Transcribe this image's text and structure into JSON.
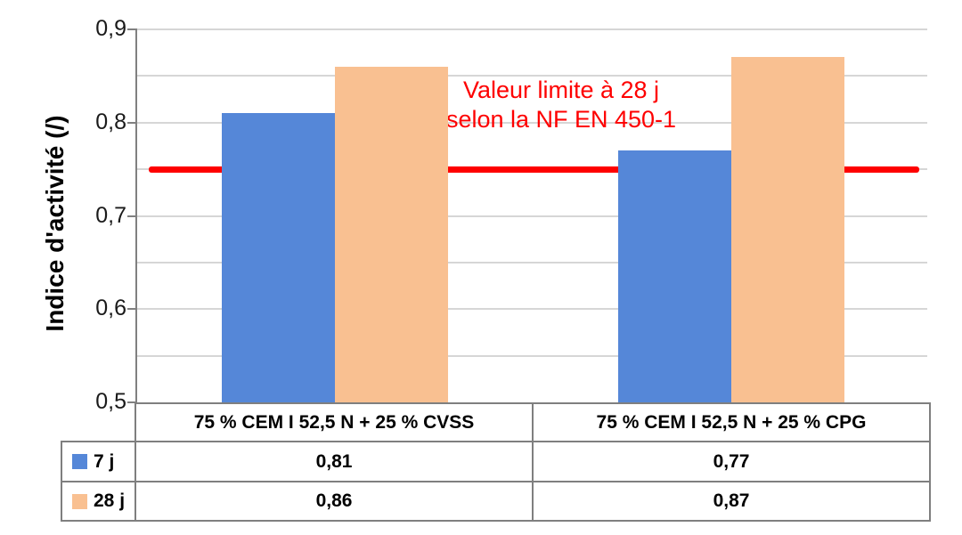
{
  "chart_data": {
    "type": "bar",
    "title": "",
    "ylabel": "Indice d'activité (/)",
    "xlabel": "",
    "ylim": [
      0.5,
      0.9
    ],
    "ytick_step": 0.1,
    "grid_step": 0.05,
    "ytick_labels": [
      "0,5",
      "0,6",
      "0,7",
      "0,8",
      "0,9"
    ],
    "grid": true,
    "legend_position": "table-left",
    "categories": [
      "75 % CEM I 52,5 N + 25 % CVSS",
      "75 % CEM I 52,5 N + 25 % CPG"
    ],
    "series": [
      {
        "name": "7 j",
        "color": "#5587d8",
        "values": [
          0.81,
          0.77
        ],
        "display_values": [
          "0,81",
          "0,77"
        ]
      },
      {
        "name": "28 j",
        "color": "#f9c091",
        "values": [
          0.86,
          0.87
        ],
        "display_values": [
          "0,86",
          "0,87"
        ]
      }
    ],
    "reference_line": {
      "value": 0.75,
      "color": "#fe0000",
      "label_lines": [
        "Valeur limite à 28 j",
        "selon la NF EN 450-1"
      ]
    }
  }
}
